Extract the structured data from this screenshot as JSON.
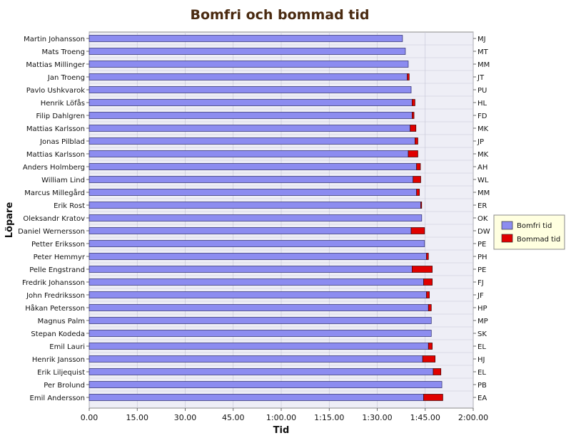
{
  "chart_data": {
    "type": "bar",
    "orientation": "horizontal",
    "stacked": true,
    "title": "Bomfri och bommad tid",
    "xlabel": "Tid",
    "ylabel": "Löpare",
    "xlim": [
      0,
      120
    ],
    "x_ticks": [
      {
        "value": 0,
        "label": "0.00"
      },
      {
        "value": 15,
        "label": "15.00"
      },
      {
        "value": 30,
        "label": "30.00"
      },
      {
        "value": 45,
        "label": "45.00"
      },
      {
        "value": 60,
        "label": "1:00.00"
      },
      {
        "value": 75,
        "label": "1:15.00"
      },
      {
        "value": 90,
        "label": "1:30.00"
      },
      {
        "value": 105,
        "label": "1:45.00"
      },
      {
        "value": 120,
        "label": "2:00.00"
      }
    ],
    "legend_position": "right",
    "grid": true,
    "colors": {
      "bomfri": "#8c8cf0",
      "bommad": "#e00000",
      "plot_bg": "#eeeef6",
      "title": "#4a2a10",
      "legend_bg": "#ffffe0"
    },
    "categories": [
      "Martin Johansson",
      "Mats Troeng",
      "Mattias Millinger",
      "Jan Troeng",
      "Pavlo Ushkvarok",
      "Henrik Löfås",
      "Filip Dahlgren",
      "Mattias Karlsson",
      "Jonas Pilblad",
      "Mattias Karlsson",
      "Anders Holmberg",
      "William Lind",
      "Marcus Millegård",
      "Erik Rost",
      "Oleksandr Kratov",
      "Daniel Wernersson",
      "Petter Eriksson",
      "Peter Hemmyr",
      "Pelle Engstrand",
      "Fredrik Johansson",
      "John Fredriksson",
      "Håkan Petersson",
      "Magnus Palm",
      "Stepan Kodeda",
      "Emil Lauri",
      "Henrik Jansson",
      "Erik Liljequist",
      "Per Brolund",
      "Emil Andersson"
    ],
    "initials": [
      "MJ",
      "MT",
      "MM",
      "JT",
      "PU",
      "HL",
      "FD",
      "MK",
      "JP",
      "MK",
      "AH",
      "WL",
      "MM",
      "ER",
      "OK",
      "DW",
      "PE",
      "PH",
      "PE",
      "FJ",
      "JF",
      "HP",
      "MP",
      "SK",
      "EL",
      "HJ",
      "EL",
      "PB",
      "EA"
    ],
    "series": [
      {
        "name": "Bomfri tid",
        "values": [
          97.9,
          98.8,
          99.7,
          99.4,
          100.6,
          100.9,
          100.9,
          100.3,
          101.8,
          99.7,
          102.3,
          101.2,
          102.3,
          103.6,
          103.9,
          100.6,
          104.8,
          105.4,
          100.9,
          104.5,
          105.4,
          106.0,
          106.9,
          106.9,
          106.0,
          104.2,
          107.5,
          110.2,
          104.5
        ]
      },
      {
        "name": "Bommad tid",
        "values": [
          0,
          0,
          0,
          0.6,
          0,
          0.9,
          0.6,
          1.8,
          0.9,
          3.0,
          1.2,
          2.4,
          0.9,
          0.3,
          0,
          4.2,
          0,
          0.6,
          6.3,
          2.7,
          0.9,
          0.9,
          0,
          0,
          1.2,
          3.9,
          2.4,
          0,
          6.0
        ]
      }
    ]
  }
}
